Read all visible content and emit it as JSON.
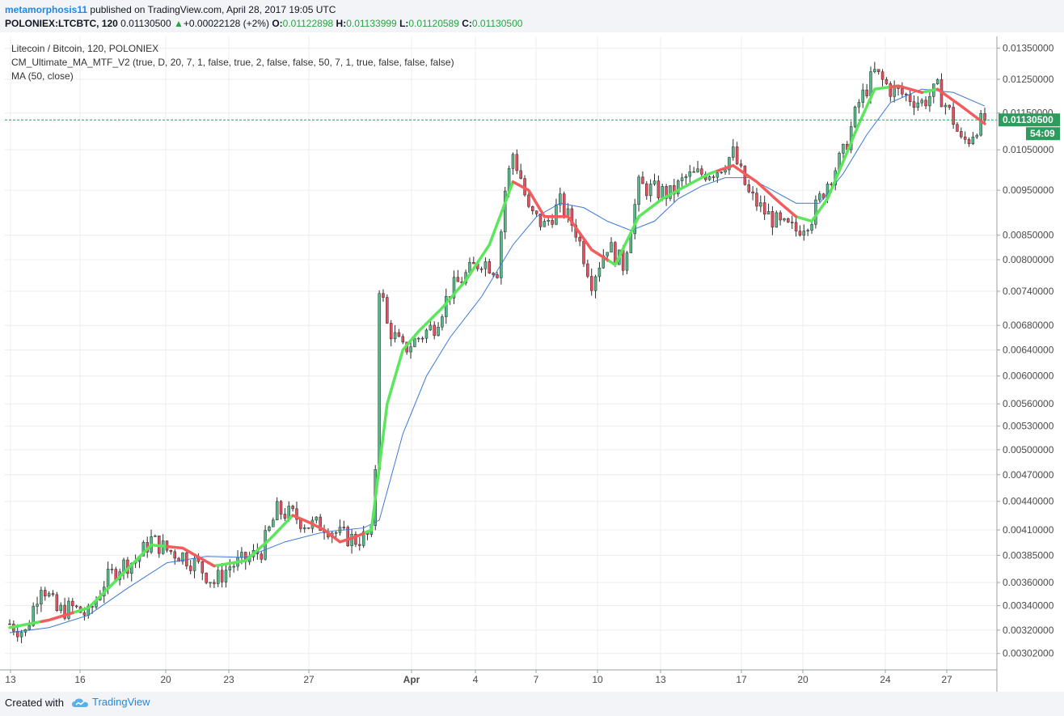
{
  "header": {
    "user": "metamorphosis11",
    "published": "published on TradingView.com, April 28, 2017 19:05 UTC",
    "symbol": "POLONIEX:LTCBTC, 120",
    "last": "0.01130500",
    "change": "+0.00022128 (+2%)",
    "ohlc": [
      {
        "label": "O:",
        "value": "0.01122898"
      },
      {
        "label": "H:",
        "value": "0.01133999"
      },
      {
        "label": "L:",
        "value": "0.01120589"
      },
      {
        "label": "C:",
        "value": "0.01130500"
      }
    ]
  },
  "legend": {
    "title": "Litecoin / Bitcoin, 120, POLONIEX",
    "indicator1": "CM_Ultimate_MA_MTF_V2 (true, D, 20, 7, 1, false, true, 2, false, false, 50, 7, 1, true, false, false, false)",
    "indicator2": "MA (50, close)"
  },
  "footer": {
    "created_with": "Created with",
    "brand": "TradingView"
  },
  "colors": {
    "up_candle": "#53b987",
    "down_candle": "#eb4d5c",
    "ma_up": "#5ce65c",
    "ma_down": "#f25c5c",
    "ma50": "#3c78d8",
    "price_line": "#2e9b5e"
  },
  "chart_data": {
    "type": "candlestick",
    "title": "Litecoin / Bitcoin, 120, POLONIEX",
    "y_scale": "log",
    "ylim": [
      0.0029,
      0.0139
    ],
    "y_ticks": [
      "0.01350000",
      "0.01250000",
      "0.01150000",
      "0.01050000",
      "0.00950000",
      "0.00850000",
      "0.00800000",
      "0.00740000",
      "0.00680000",
      "0.00640000",
      "0.00600000",
      "0.00560000",
      "0.00530000",
      "0.00500000",
      "0.00470000",
      "0.00440000",
      "0.00410000",
      "0.00385000",
      "0.00360000",
      "0.00340000",
      "0.00320000",
      "0.00302000"
    ],
    "x_ticks": [
      "13",
      "16",
      "20",
      "23",
      "27",
      "Apr",
      "4",
      "7",
      "10",
      "13",
      "17",
      "20",
      "24",
      "27"
    ],
    "last_price_label": "0.01130500",
    "countdown_label": "54:09",
    "last_price": 0.011305,
    "series": [
      {
        "name": "Litecoin / Bitcoin",
        "kind": "close-trace",
        "points": [
          [
            0,
            0.00325
          ],
          [
            2,
            0.00318
          ],
          [
            4,
            0.0036
          ],
          [
            6,
            0.00335
          ],
          [
            8,
            0.00338
          ],
          [
            10,
            0.00332
          ],
          [
            12,
            0.0036
          ],
          [
            14,
            0.00375
          ],
          [
            16,
            0.0038
          ],
          [
            18,
            0.004
          ],
          [
            20,
            0.0039
          ],
          [
            22,
            0.00385
          ],
          [
            24,
            0.00375
          ],
          [
            26,
            0.0036
          ],
          [
            28,
            0.00375
          ],
          [
            30,
            0.0038
          ],
          [
            32,
            0.0039
          ],
          [
            34,
            0.0043
          ],
          [
            36,
            0.00425
          ],
          [
            38,
            0.00415
          ],
          [
            40,
            0.00415
          ],
          [
            42,
            0.00405
          ],
          [
            44,
            0.004
          ],
          [
            46,
            0.00405
          ],
          [
            46.5,
            0.0048
          ],
          [
            47,
            0.0075
          ],
          [
            47.5,
            0.0072
          ],
          [
            48,
            0.0068
          ],
          [
            50,
            0.0064
          ],
          [
            52,
            0.0066
          ],
          [
            54,
            0.0068
          ],
          [
            56,
            0.0074
          ],
          [
            58,
            0.0077
          ],
          [
            60,
            0.008
          ],
          [
            62,
            0.0078
          ],
          [
            63,
            0.0095
          ],
          [
            64,
            0.0104
          ],
          [
            65,
            0.0098
          ],
          [
            66,
            0.009
          ],
          [
            68,
            0.0087
          ],
          [
            70,
            0.0092
          ],
          [
            72,
            0.0086
          ],
          [
            74,
            0.0076
          ],
          [
            76,
            0.0083
          ],
          [
            78,
            0.0079
          ],
          [
            80,
            0.0096
          ],
          [
            82,
            0.0095
          ],
          [
            84,
            0.0094
          ],
          [
            86,
            0.0098
          ],
          [
            88,
            0.0099
          ],
          [
            90,
            0.01
          ],
          [
            92,
            0.0104
          ],
          [
            94,
            0.0094
          ],
          [
            96,
            0.009
          ],
          [
            98,
            0.0087
          ],
          [
            100,
            0.0086
          ],
          [
            102,
            0.0089
          ],
          [
            104,
            0.0097
          ],
          [
            106,
            0.0104
          ],
          [
            108,
            0.0118
          ],
          [
            110,
            0.0127
          ],
          [
            112,
            0.0122
          ],
          [
            114,
            0.012
          ],
          [
            116,
            0.0118
          ],
          [
            118,
            0.0122
          ],
          [
            120,
            0.0113
          ],
          [
            121,
            0.0107
          ],
          [
            122,
            0.0108
          ],
          [
            123,
            0.01115
          ],
          [
            124,
            0.011305
          ]
        ]
      },
      {
        "name": "CM_Ultimate_MA_MTF_V2",
        "kind": "ma-colored",
        "points": [
          [
            0,
            0.00322
          ],
          [
            5,
            0.00328
          ],
          [
            10,
            0.00338
          ],
          [
            14,
            0.00365
          ],
          [
            18,
            0.00395
          ],
          [
            22,
            0.00392
          ],
          [
            26,
            0.00375
          ],
          [
            30,
            0.0038
          ],
          [
            33,
            0.004
          ],
          [
            36,
            0.00425
          ],
          [
            38,
            0.00418
          ],
          [
            40,
            0.0041
          ],
          [
            42,
            0.00398
          ],
          [
            44,
            0.00403
          ],
          [
            46,
            0.0041
          ],
          [
            48,
            0.0056
          ],
          [
            50,
            0.0064
          ],
          [
            52,
            0.0067
          ],
          [
            55,
            0.0071
          ],
          [
            58,
            0.0076
          ],
          [
            61,
            0.0083
          ],
          [
            64,
            0.0097
          ],
          [
            66,
            0.0095
          ],
          [
            68,
            0.0089
          ],
          [
            71,
            0.0089
          ],
          [
            74,
            0.0082
          ],
          [
            77,
            0.0079
          ],
          [
            80,
            0.0089
          ],
          [
            83,
            0.0093
          ],
          [
            86,
            0.0096
          ],
          [
            89,
            0.0099
          ],
          [
            92,
            0.0101
          ],
          [
            95,
            0.0097
          ],
          [
            98,
            0.0092
          ],
          [
            100,
            0.0089
          ],
          [
            102,
            0.0088
          ],
          [
            104,
            0.0093
          ],
          [
            106,
            0.0102
          ],
          [
            108,
            0.0112
          ],
          [
            110,
            0.0122
          ],
          [
            113,
            0.0123
          ],
          [
            116,
            0.0121
          ],
          [
            118,
            0.0122
          ],
          [
            121,
            0.0117
          ],
          [
            124,
            0.0112
          ]
        ],
        "up_segments": [
          [
            0,
            4
          ],
          [
            8,
            20
          ],
          [
            26,
            36
          ],
          [
            45,
            64
          ],
          [
            76,
            90
          ],
          [
            100,
            112
          ],
          [
            116,
            118
          ]
        ],
        "down_segments": [
          [
            4,
            8
          ],
          [
            20,
            26
          ],
          [
            36,
            45
          ],
          [
            64,
            76
          ],
          [
            90,
            100
          ],
          [
            112,
            116
          ],
          [
            118,
            124
          ]
        ]
      },
      {
        "name": "MA (50, close)",
        "kind": "line",
        "points": [
          [
            0,
            0.00318
          ],
          [
            5,
            0.00322
          ],
          [
            10,
            0.00332
          ],
          [
            15,
            0.00355
          ],
          [
            20,
            0.00378
          ],
          [
            25,
            0.00384
          ],
          [
            30,
            0.00383
          ],
          [
            35,
            0.00398
          ],
          [
            40,
            0.00408
          ],
          [
            45,
            0.00412
          ],
          [
            47,
            0.0042
          ],
          [
            50,
            0.0052
          ],
          [
            53,
            0.006
          ],
          [
            56,
            0.0066
          ],
          [
            60,
            0.0073
          ],
          [
            64,
            0.0083
          ],
          [
            67,
            0.0089
          ],
          [
            70,
            0.0092
          ],
          [
            73,
            0.0091
          ],
          [
            76,
            0.0088
          ],
          [
            79,
            0.0086
          ],
          [
            82,
            0.0088
          ],
          [
            85,
            0.0093
          ],
          [
            88,
            0.0096
          ],
          [
            91,
            0.0098
          ],
          [
            94,
            0.0098
          ],
          [
            97,
            0.0095
          ],
          [
            100,
            0.0092
          ],
          [
            103,
            0.0092
          ],
          [
            106,
            0.0099
          ],
          [
            109,
            0.0109
          ],
          [
            112,
            0.0118
          ],
          [
            116,
            0.0122
          ],
          [
            120,
            0.0121
          ],
          [
            124,
            0.0117
          ]
        ]
      }
    ],
    "grid": true,
    "legend_position": "top-left"
  }
}
